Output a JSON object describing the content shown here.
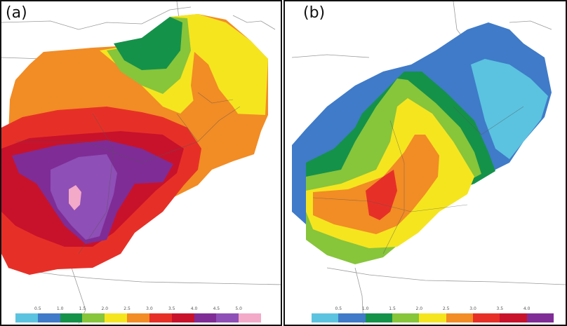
{
  "panels": [
    {
      "label": "(a)",
      "colorbar": {
        "colors": [
          "#5bc3e0",
          "#3f7bc8",
          "#14924a",
          "#87c53b",
          "#f5e51f",
          "#f28c25",
          "#e63027",
          "#c8122c",
          "#7f2c96",
          "#8e4fb6",
          "#f3a9c8"
        ],
        "ticks": [
          "0.5",
          "1.0",
          "1.5",
          "2.0",
          "2.5",
          "3.0",
          "3.5",
          "4.0",
          "4.5",
          "5.0"
        ]
      }
    },
    {
      "label": "(b)",
      "colorbar": {
        "colors": [
          "#5bc3e0",
          "#3f7bc8",
          "#14924a",
          "#87c53b",
          "#f5e51f",
          "#f28c25",
          "#e63027",
          "#c8122c",
          "#7f2c96"
        ],
        "ticks": [
          "0.5",
          "1.0",
          "1.5",
          "2.0",
          "2.5",
          "3.0",
          "3.5",
          "4.0"
        ]
      }
    }
  ]
}
